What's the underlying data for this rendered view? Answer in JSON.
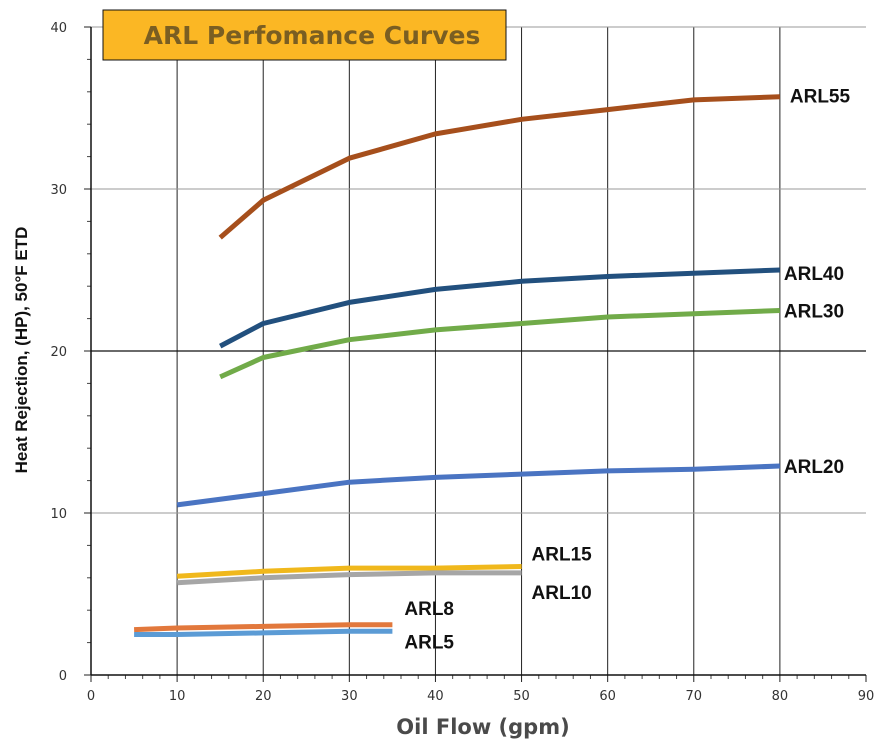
{
  "chart_data": {
    "type": "line",
    "title": "ARL Perfomance Curves",
    "xlabel": "Oil Flow (gpm)",
    "ylabel": "Heat Rejection, (HP), 50°F ETD",
    "xlim": [
      0,
      90
    ],
    "ylim": [
      0,
      40
    ],
    "xticks": [
      "0",
      "10",
      "20",
      "30",
      "40",
      "50",
      "60",
      "70",
      "80",
      "90"
    ],
    "yticks": [
      "0",
      "10",
      "20",
      "30",
      "40"
    ],
    "grid": true,
    "title_box_color": "#fbb724",
    "series": [
      {
        "name": "ARL55",
        "color": "#a64f1c",
        "x": [
          15,
          20,
          30,
          40,
          50,
          60,
          70,
          80
        ],
        "y": [
          27.0,
          29.3,
          31.9,
          33.4,
          34.3,
          34.9,
          35.5,
          35.7
        ]
      },
      {
        "name": "ARL40",
        "color": "#22507e",
        "x": [
          15,
          20,
          30,
          40,
          50,
          60,
          70,
          80
        ],
        "y": [
          20.3,
          21.7,
          23.0,
          23.8,
          24.3,
          24.6,
          24.8,
          25.0
        ]
      },
      {
        "name": "ARL30",
        "color": "#71ab49",
        "x": [
          15,
          20,
          30,
          40,
          50,
          60,
          70,
          80
        ],
        "y": [
          18.4,
          19.6,
          20.7,
          21.3,
          21.7,
          22.1,
          22.3,
          22.5
        ]
      },
      {
        "name": "ARL20",
        "color": "#4a74c2",
        "x": [
          10,
          20,
          30,
          40,
          50,
          60,
          70,
          80
        ],
        "y": [
          10.5,
          11.2,
          11.9,
          12.2,
          12.4,
          12.6,
          12.7,
          12.9
        ]
      },
      {
        "name": "ARL15",
        "color": "#f0b81c",
        "x": [
          10,
          20,
          30,
          40,
          50
        ],
        "y": [
          6.1,
          6.4,
          6.6,
          6.6,
          6.7
        ]
      },
      {
        "name": "ARL10",
        "color": "#a6a6a6",
        "x": [
          10,
          20,
          30,
          40,
          50
        ],
        "y": [
          5.7,
          6.0,
          6.2,
          6.3,
          6.3
        ]
      },
      {
        "name": "ARL8",
        "color": "#e2783c",
        "x": [
          5,
          10,
          20,
          30,
          35
        ],
        "y": [
          2.8,
          2.9,
          3.0,
          3.1,
          3.1
        ]
      },
      {
        "name": "ARL5",
        "color": "#5b9bd5",
        "x": [
          5,
          10,
          20,
          30,
          35
        ],
        "y": [
          2.5,
          2.5,
          2.6,
          2.7,
          2.7
        ]
      }
    ]
  }
}
